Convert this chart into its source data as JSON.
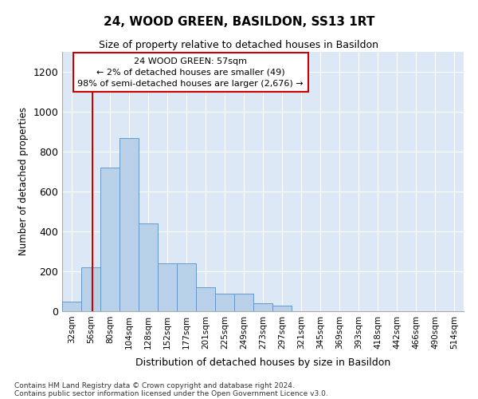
{
  "title": "24, WOOD GREEN, BASILDON, SS13 1RT",
  "subtitle": "Size of property relative to detached houses in Basildon",
  "xlabel": "Distribution of detached houses by size in Basildon",
  "ylabel": "Number of detached properties",
  "footnote1": "Contains HM Land Registry data © Crown copyright and database right 2024.",
  "footnote2": "Contains public sector information licensed under the Open Government Licence v3.0.",
  "annotation_line1": "24 WOOD GREEN: 57sqm",
  "annotation_line2": "← 2% of detached houses are smaller (49)",
  "annotation_line3": "98% of semi-detached houses are larger (2,676) →",
  "bar_color": "#b8d0e8",
  "bar_edge_color": "#6699cc",
  "vline_color": "#cc0000",
  "annotation_box_edgecolor": "#cc0000",
  "background_color": "#dce8f5",
  "categories": [
    "32sqm",
    "56sqm",
    "80sqm",
    "104sqm",
    "128sqm",
    "152sqm",
    "177sqm",
    "201sqm",
    "225sqm",
    "249sqm",
    "273sqm",
    "297sqm",
    "321sqm",
    "345sqm",
    "369sqm",
    "393sqm",
    "418sqm",
    "442sqm",
    "466sqm",
    "490sqm",
    "514sqm"
  ],
  "values": [
    50,
    220,
    720,
    870,
    440,
    240,
    240,
    120,
    90,
    90,
    40,
    30,
    0,
    0,
    0,
    0,
    0,
    0,
    0,
    0,
    0
  ],
  "ylim": [
    0,
    1300
  ],
  "yticks": [
    0,
    200,
    400,
    600,
    800,
    1000,
    1200
  ],
  "vline_x_index": 1.08
}
